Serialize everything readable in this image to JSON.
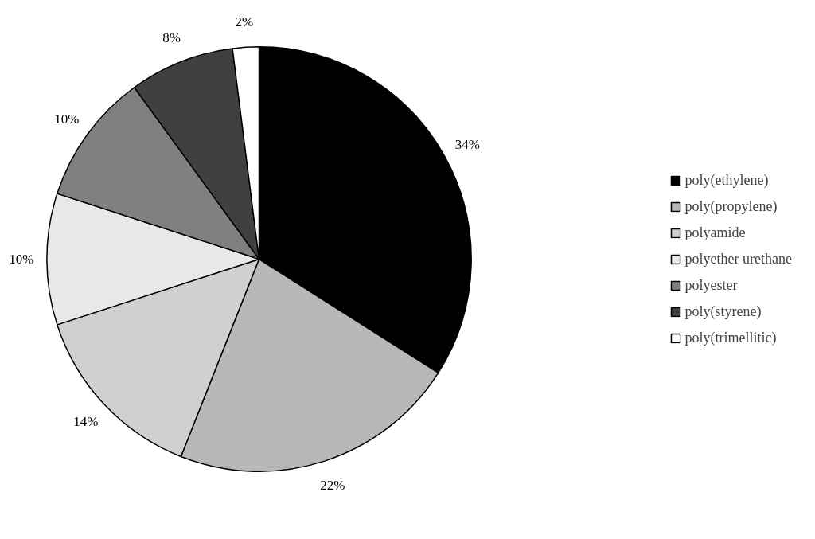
{
  "chart_data": {
    "type": "pie",
    "categories": [
      "poly(ethylene)",
      "poly(propylene)",
      "polyamide",
      "polyether urethane",
      "polyester",
      "poly(styrene)",
      "poly(trimellitic)"
    ],
    "values": [
      34,
      22,
      14,
      10,
      10,
      8,
      2
    ],
    "value_labels": [
      "34%",
      "22%",
      "14%",
      "10%",
      "10%",
      "8%",
      "2%"
    ],
    "colors": [
      "#000000",
      "#b8b8b8",
      "#d0d0d0",
      "#e8e8e8",
      "#808080",
      "#404040",
      "#ffffff"
    ],
    "legend": "right"
  }
}
